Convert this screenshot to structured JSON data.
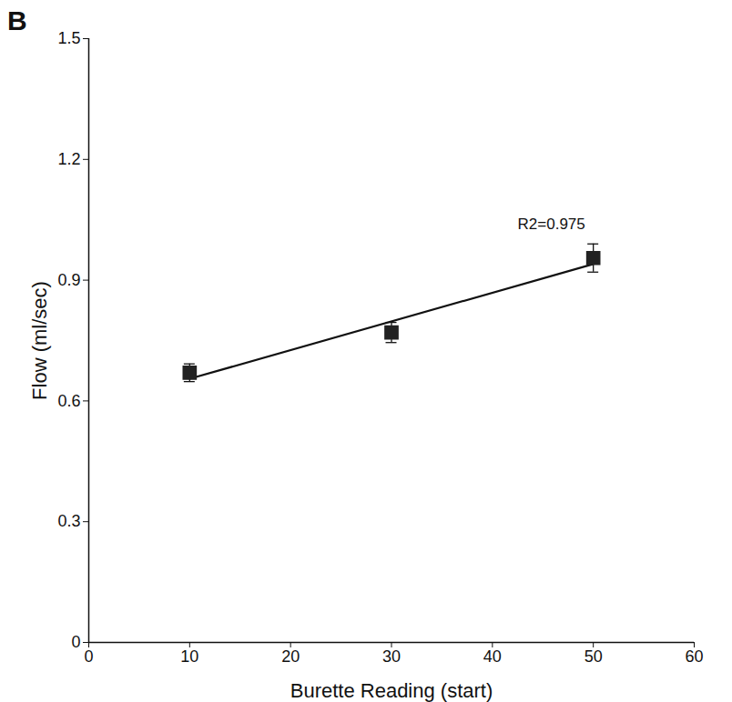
{
  "chart_data": {
    "type": "scatter",
    "title": "B",
    "x_label": "Burette Reading (start)",
    "y_label": "Flow (ml/sec)",
    "x": [
      10,
      30,
      50
    ],
    "values": [
      0.67,
      0.77,
      0.955
    ],
    "errors": [
      0.022,
      0.025,
      0.035
    ],
    "fit": {
      "x": [
        10,
        50
      ],
      "values": [
        0.655,
        0.94
      ]
    },
    "annotation": "R2=0.975",
    "color": "#222222",
    "marker": "square",
    "xlim": [
      0,
      60
    ],
    "xticks": [
      0,
      10,
      20,
      30,
      40,
      50,
      60
    ],
    "ylim": [
      0,
      1.5
    ],
    "yticks": [
      0,
      0.3,
      0.6,
      0.9,
      1.2,
      1.5
    ],
    "grid": false
  }
}
